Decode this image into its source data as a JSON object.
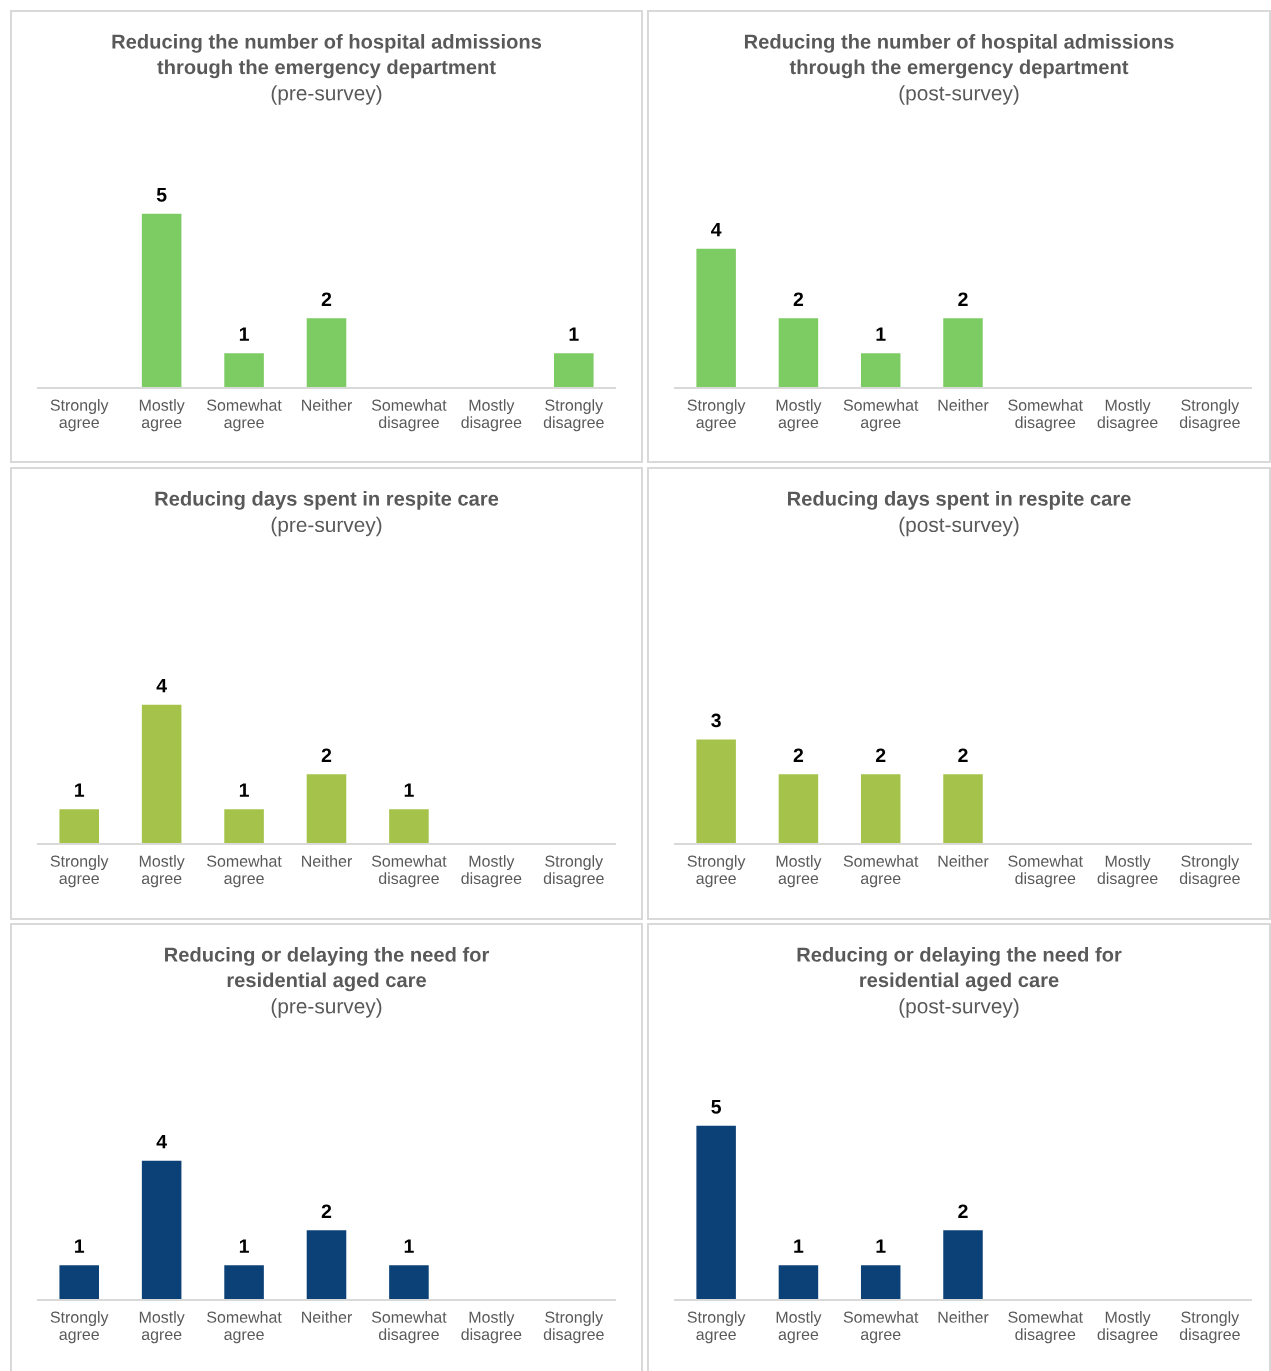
{
  "chart_data": [
    {
      "type": "bar",
      "title": "Reducing the number of hospital admissions\nthrough the emergency department",
      "subtitle": "(pre-survey)",
      "categories": [
        "Strongly\nagree",
        "Mostly\nagree",
        "Somewhat\nagree",
        "Neither",
        "Somewhat\ndisagree",
        "Mostly\ndisagree",
        "Strongly\ndisagree"
      ],
      "values": [
        0,
        5,
        1,
        2,
        0,
        0,
        1
      ],
      "value_labels": [
        null,
        "5",
        "1",
        "2",
        null,
        null,
        "1"
      ],
      "color": "#7dcb63"
    },
    {
      "type": "bar",
      "title": "Reducing the number of hospital admissions\nthrough the emergency department",
      "subtitle": "(post-survey)",
      "categories": [
        "Strongly\nagree",
        "Mostly\nagree",
        "Somewhat\nagree",
        "Neither",
        "Somewhat\ndisagree",
        "Mostly\ndisagree",
        "Strongly\ndisagree"
      ],
      "values": [
        4,
        2,
        1,
        2,
        0,
        0,
        0
      ],
      "value_labels": [
        "4",
        "2",
        "1",
        "2",
        null,
        null,
        null
      ],
      "color": "#7dcb63"
    },
    {
      "type": "bar",
      "title": "Reducing days spent in respite care",
      "subtitle": "(pre-survey)",
      "categories": [
        "Strongly\nagree",
        "Mostly\nagree",
        "Somewhat\nagree",
        "Neither",
        "Somewhat\ndisagree",
        "Mostly\ndisagree",
        "Strongly\ndisagree"
      ],
      "values": [
        1,
        4,
        1,
        2,
        1,
        0,
        0
      ],
      "value_labels": [
        "1",
        "4",
        "1",
        "2",
        "1",
        null,
        null
      ],
      "color": "#a5c34a"
    },
    {
      "type": "bar",
      "title": "Reducing days spent in respite care",
      "subtitle": "(post-survey)",
      "categories": [
        "Strongly\nagree",
        "Mostly\nagree",
        "Somewhat\nagree",
        "Neither",
        "Somewhat\ndisagree",
        "Mostly\ndisagree",
        "Strongly\ndisagree"
      ],
      "values": [
        3,
        2,
        2,
        2,
        0,
        0,
        0
      ],
      "value_labels": [
        "3",
        "2",
        "2",
        "2",
        null,
        null,
        null
      ],
      "color": "#a5c34a"
    },
    {
      "type": "bar",
      "title": "Reducing or delaying the need for\nresidential aged care",
      "subtitle": "(pre-survey)",
      "categories": [
        "Strongly\nagree",
        "Mostly\nagree",
        "Somewhat\nagree",
        "Neither",
        "Somewhat\ndisagree",
        "Mostly\ndisagree",
        "Strongly\ndisagree"
      ],
      "values": [
        1,
        4,
        1,
        2,
        1,
        0,
        0
      ],
      "value_labels": [
        "1",
        "4",
        "1",
        "2",
        "1",
        null,
        null
      ],
      "color": "#0b4177"
    },
    {
      "type": "bar",
      "title": "Reducing or delaying the need for\nresidential aged care",
      "subtitle": "(post-survey)",
      "categories": [
        "Strongly\nagree",
        "Mostly\nagree",
        "Somewhat\nagree",
        "Neither",
        "Somewhat\ndisagree",
        "Mostly\ndisagree",
        "Strongly\ndisagree"
      ],
      "values": [
        5,
        1,
        1,
        2,
        0,
        0,
        0
      ],
      "value_labels": [
        "5",
        "1",
        "1",
        "2",
        null,
        null,
        null
      ],
      "color": "#0b4177"
    }
  ]
}
